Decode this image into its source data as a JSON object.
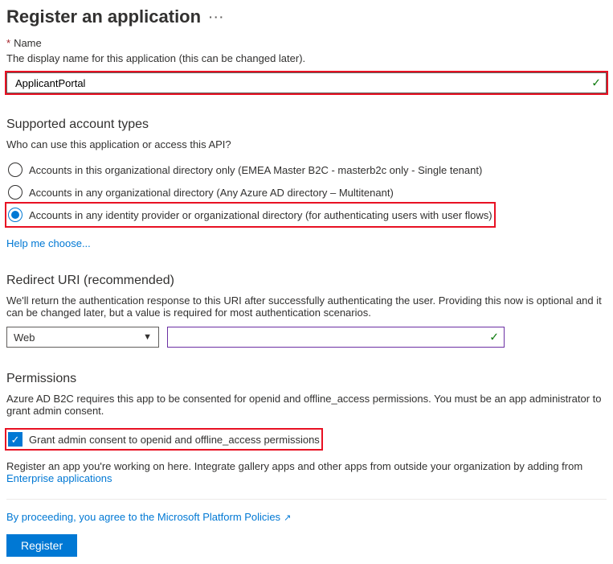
{
  "title": "Register an application",
  "name_section": {
    "label": "Name",
    "help": "The display name for this application (this can be changed later).",
    "value": "ApplicantPortal"
  },
  "account_types": {
    "title": "Supported account types",
    "help": "Who can use this application or access this API?",
    "options": [
      "Accounts in this organizational directory only (EMEA Master B2C - masterb2c only - Single tenant)",
      "Accounts in any organizational directory (Any Azure AD directory – Multitenant)",
      "Accounts in any identity provider or organizational directory (for authenticating users with user flows)"
    ],
    "selected_index": 2,
    "help_link": "Help me choose..."
  },
  "redirect": {
    "title": "Redirect URI (recommended)",
    "help": "We'll return the authentication response to this URI after successfully authenticating the user. Providing this now is optional and it can be changed later, but a value is required for most authentication scenarios.",
    "platform": "Web",
    "uri": ""
  },
  "permissions": {
    "title": "Permissions",
    "help": "Azure AD B2C requires this app to be consented for openid and offline_access permissions. You must be an app administrator to grant admin consent.",
    "checkbox_label": "Grant admin consent to openid and offline_access permissions",
    "checked": true
  },
  "footer": {
    "note_prefix": "Register an app you're working on here. Integrate gallery apps and other apps from outside your organization by adding from ",
    "note_link": "Enterprise applications",
    "policy_text": "By proceeding, you agree to the Microsoft Platform Policies",
    "register": "Register"
  },
  "colors": {
    "primary": "#0078d4",
    "danger": "#e81123",
    "success": "#107c10"
  }
}
